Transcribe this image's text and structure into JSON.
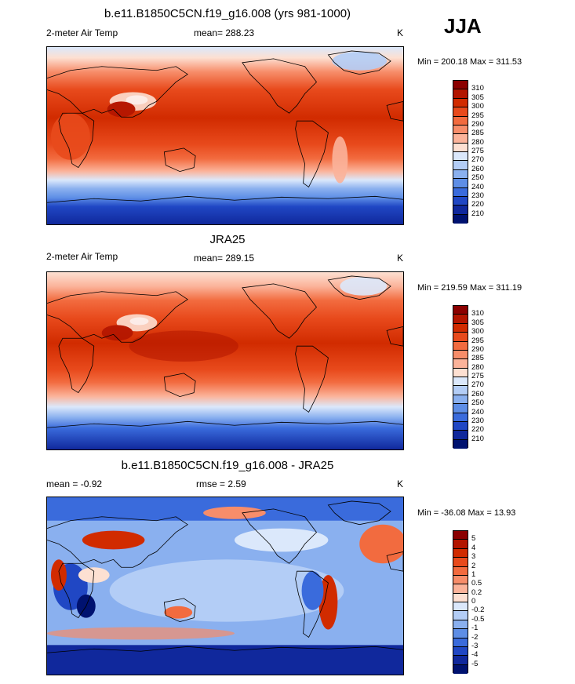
{
  "season": "JJA",
  "panels": [
    {
      "id": "model",
      "title": "b.e11.B1850C5CN.f19_g16.008 (yrs 981-1000)",
      "left_label": "2-meter Air Temp",
      "center_label": "mean= 288.23",
      "units": "K",
      "minmax": "Min = 200.18 Max = 311.53",
      "levels": [
        "310",
        "305",
        "300",
        "295",
        "290",
        "285",
        "280",
        "275",
        "270",
        "260",
        "250",
        "240",
        "230",
        "220",
        "210"
      ],
      "colors": [
        "#8b0000",
        "#b31500",
        "#d12b00",
        "#e84a1c",
        "#f26b3f",
        "#f78d6a",
        "#fbb39a",
        "#fde0d2",
        "#dbe8fb",
        "#b3cdf6",
        "#8ab0ef",
        "#5e8ee6",
        "#3a6bdc",
        "#2047c4",
        "#10289c",
        "#001270"
      ]
    },
    {
      "id": "obs",
      "title": "JRA25",
      "left_label": "2-meter Air Temp",
      "center_label": "mean= 289.15",
      "units": "K",
      "minmax": "Min = 219.59 Max = 311.19",
      "levels": [
        "310",
        "305",
        "300",
        "295",
        "290",
        "285",
        "280",
        "275",
        "270",
        "260",
        "250",
        "240",
        "230",
        "220",
        "210"
      ],
      "colors": [
        "#8b0000",
        "#b31500",
        "#d12b00",
        "#e84a1c",
        "#f26b3f",
        "#f78d6a",
        "#fbb39a",
        "#fde0d2",
        "#dbe8fb",
        "#b3cdf6",
        "#8ab0ef",
        "#5e8ee6",
        "#3a6bdc",
        "#2047c4",
        "#10289c",
        "#001270"
      ]
    },
    {
      "id": "diff",
      "title": "b.e11.B1850C5CN.f19_g16.008 - JRA25",
      "left_label": "mean =  -0.92",
      "center_label": "rmse =   2.59",
      "units": "K",
      "minmax": "Min = -36.08 Max =  13.93",
      "levels": [
        "5",
        "4",
        "3",
        "2",
        "1",
        "0.5",
        "0.2",
        "0",
        "-0.2",
        "-0.5",
        "-1",
        "-2",
        "-3",
        "-4",
        "-5"
      ],
      "colors": [
        "#8b0000",
        "#b31500",
        "#d12b00",
        "#e84a1c",
        "#f26b3f",
        "#f78d6a",
        "#fbb39a",
        "#fde0d2",
        "#dbe8fb",
        "#b3cdf6",
        "#8ab0ef",
        "#5e8ee6",
        "#3a6bdc",
        "#2047c4",
        "#10289c",
        "#001270"
      ]
    }
  ]
}
